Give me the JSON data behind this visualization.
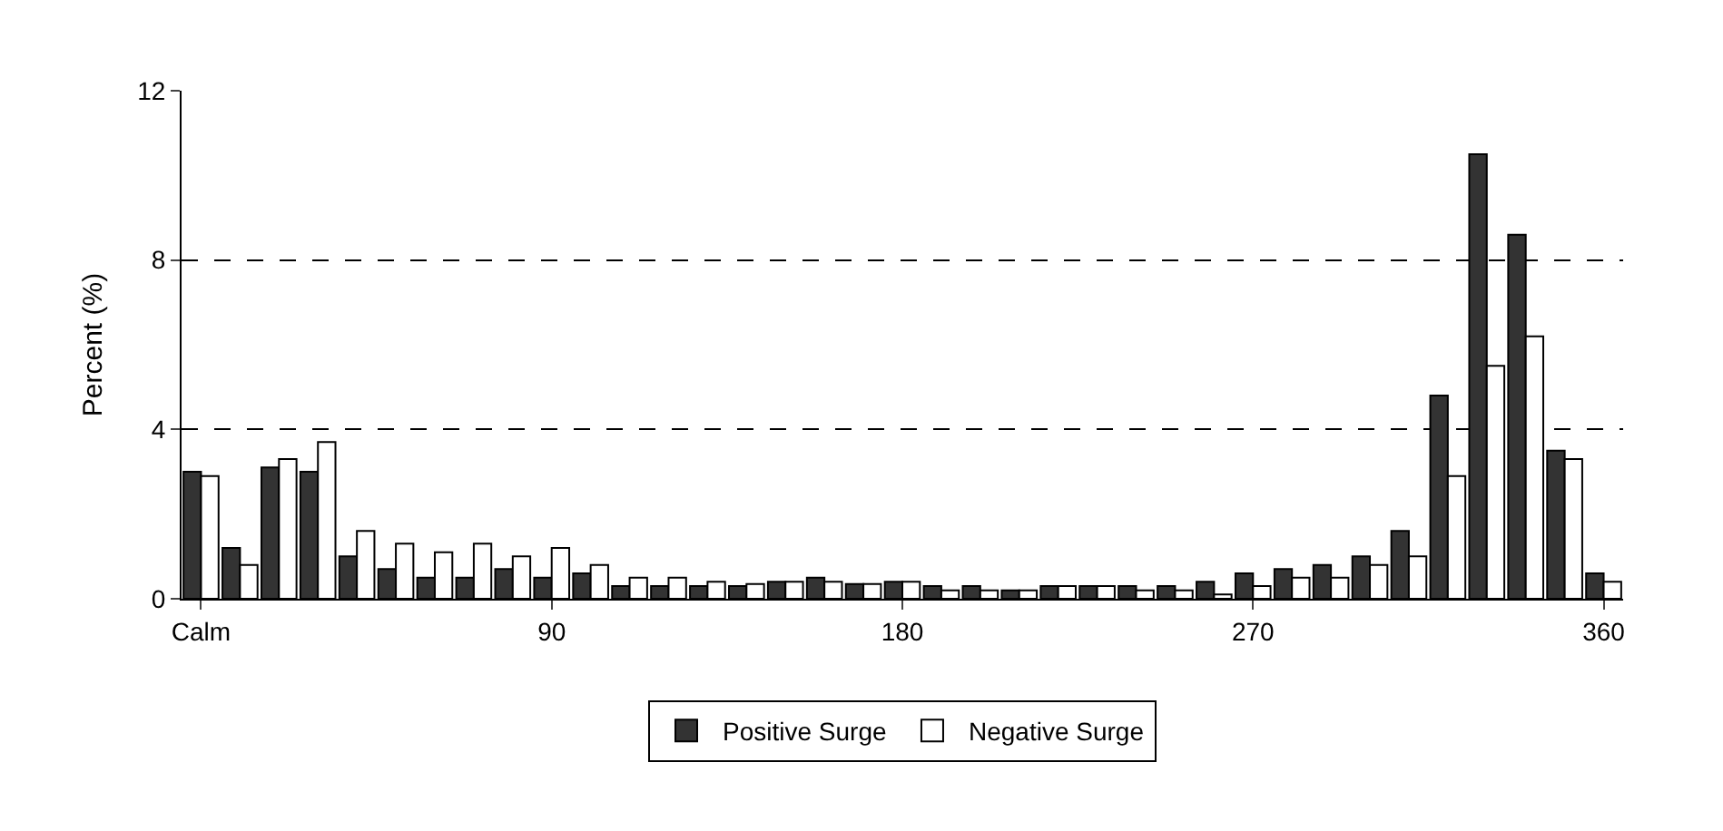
{
  "chart_data": {
    "type": "bar",
    "ylabel": "Percent (%)",
    "categories": [
      "Calm",
      null,
      null,
      null,
      null,
      null,
      null,
      null,
      null,
      "90",
      null,
      null,
      null,
      null,
      null,
      null,
      null,
      null,
      "180",
      null,
      null,
      null,
      null,
      null,
      null,
      null,
      null,
      "270",
      null,
      null,
      null,
      null,
      null,
      null,
      null,
      null,
      "360"
    ],
    "series": [
      {
        "name": "Positive Surge",
        "color": "#333333",
        "values": [
          3.0,
          1.2,
          3.1,
          3.0,
          1.0,
          0.7,
          0.5,
          0.5,
          0.7,
          0.5,
          0.6,
          0.3,
          0.3,
          0.3,
          0.3,
          0.4,
          0.5,
          0.35,
          0.4,
          0.3,
          0.3,
          0.2,
          0.3,
          0.3,
          0.3,
          0.3,
          0.4,
          0.6,
          0.7,
          0.8,
          1.0,
          1.6,
          4.8,
          10.5,
          8.6,
          3.5,
          0.6
        ]
      },
      {
        "name": "Negative Surge",
        "color": "#ffffff",
        "values": [
          2.9,
          0.8,
          3.3,
          3.7,
          1.6,
          1.3,
          1.1,
          1.3,
          1.0,
          1.2,
          0.8,
          0.5,
          0.5,
          0.4,
          0.35,
          0.4,
          0.4,
          0.35,
          0.4,
          0.2,
          0.2,
          0.2,
          0.3,
          0.3,
          0.2,
          0.2,
          0.1,
          0.3,
          0.5,
          0.5,
          0.8,
          1.0,
          2.9,
          5.5,
          6.2,
          3.3,
          0.4
        ]
      }
    ],
    "ylim": [
      0,
      12
    ],
    "yticks": [
      0,
      4,
      8,
      12
    ],
    "grid": "y",
    "legend": "bottom"
  }
}
